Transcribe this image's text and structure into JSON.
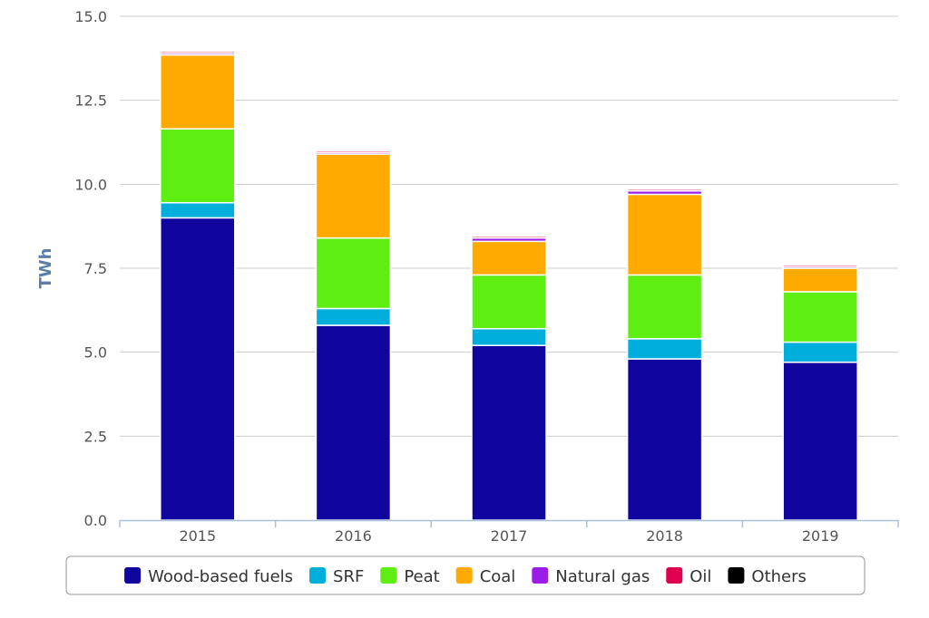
{
  "chart_data": {
    "type": "bar",
    "stacked": true,
    "title": "",
    "xlabel": "",
    "ylabel": "TWh",
    "ylim": [
      0,
      15
    ],
    "yticks": [
      "0.0",
      "2.5",
      "5.0",
      "7.5",
      "10.0",
      "12.5",
      "15.0"
    ],
    "grid": true,
    "legend_position": "bottom",
    "categories": [
      "2015",
      "2016",
      "2017",
      "2018",
      "2019"
    ],
    "series": [
      {
        "name": "Wood-based fuels",
        "color": "#10069f",
        "values": [
          9.0,
          5.8,
          5.2,
          4.8,
          4.7
        ]
      },
      {
        "name": "SRF",
        "color": "#00aedb",
        "values": [
          0.45,
          0.5,
          0.5,
          0.6,
          0.6
        ]
      },
      {
        "name": "Peat",
        "color": "#5fee11",
        "values": [
          2.2,
          2.1,
          1.6,
          1.9,
          1.5
        ]
      },
      {
        "name": "Coal",
        "color": "#ffaa00",
        "values": [
          2.2,
          2.5,
          1.0,
          2.4,
          0.7
        ]
      },
      {
        "name": "Natural gas",
        "color": "#9b1ce6",
        "values": [
          0.05,
          0.05,
          0.1,
          0.1,
          0.05
        ]
      },
      {
        "name": "Oil",
        "color": "#e0004f",
        "values": [
          0.05,
          0.05,
          0.05,
          0.05,
          0.05
        ]
      },
      {
        "name": "Others",
        "color": "#000000",
        "values": [
          0,
          0,
          0,
          0,
          0
        ]
      }
    ]
  }
}
